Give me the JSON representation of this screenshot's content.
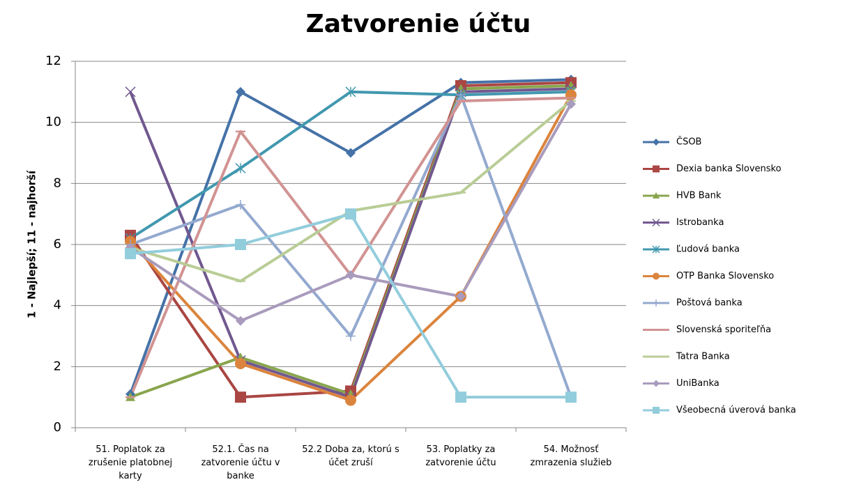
{
  "chart_data": {
    "type": "line",
    "title": "Zatvorenie účtu",
    "y_label": "1 - Najlepší; 11 - najhorší",
    "categories": [
      "51. Poplatok za zrušenie platobnej karty",
      "52.1. Čas na zatvorenie účtu v banke",
      "52.2 Doba za, ktorú s účet zruší",
      "53. Poplatky za zatvorenie účtu",
      "54. Možnosť zmrazenia služieb"
    ],
    "ylim": [
      0,
      12
    ],
    "yticks": [
      0,
      2,
      4,
      6,
      8,
      10,
      12
    ],
    "grid": true,
    "legend": "right",
    "series": [
      {
        "name": "ČSOB",
        "color": "#4572a7",
        "marker": "diamond",
        "values": [
          1.1,
          11,
          9,
          11.3,
          11.4
        ]
      },
      {
        "name": "Dexia banka Slovensko",
        "color": "#aa4643",
        "marker": "square",
        "values": [
          6.3,
          1.0,
          1.2,
          11.2,
          11.3
        ]
      },
      {
        "name": "HVB Bank",
        "color": "#89a54e",
        "marker": "triangle",
        "values": [
          1.0,
          2.3,
          1.1,
          11.1,
          11.2
        ]
      },
      {
        "name": "Istrobanka",
        "color": "#71588f",
        "marker": "x",
        "values": [
          11,
          2.2,
          1.0,
          11.0,
          11.1
        ]
      },
      {
        "name": "Ľudová banka",
        "color": "#4198af",
        "marker": "star",
        "values": [
          6.2,
          8.5,
          11,
          10.9,
          11.0
        ]
      },
      {
        "name": "OTP Banka Slovensko",
        "color": "#db843d",
        "marker": "circle",
        "values": [
          6.1,
          2.1,
          0.9,
          4.3,
          10.9
        ]
      },
      {
        "name": "Poštová banka",
        "color": "#93a9cf",
        "marker": "plus",
        "values": [
          6.0,
          7.3,
          3.0,
          10.9,
          1.0
        ]
      },
      {
        "name": "Slovenská sporiteľňa",
        "color": "#d19392",
        "marker": "dash",
        "values": [
          1.0,
          9.7,
          5.0,
          10.7,
          10.8
        ]
      },
      {
        "name": "Tatra Banka",
        "color": "#b9cd96",
        "marker": "dash",
        "values": [
          5.9,
          4.8,
          7.1,
          7.7,
          10.7
        ]
      },
      {
        "name": "UniBanka",
        "color": "#a99bbd",
        "marker": "diamond",
        "values": [
          5.9,
          3.5,
          5.0,
          4.3,
          10.6
        ]
      },
      {
        "name": "Všeobecná úverová banka",
        "color": "#92cddc",
        "marker": "square",
        "values": [
          5.7,
          6.0,
          7.0,
          1.0,
          1.0
        ]
      }
    ]
  }
}
